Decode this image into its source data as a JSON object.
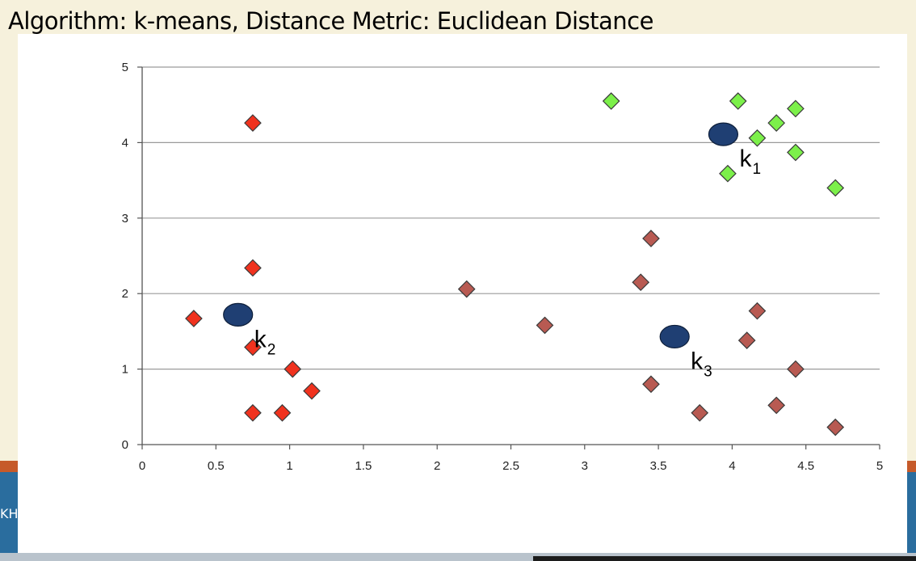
{
  "slide": {
    "title": "Algorithm: k-means, Distance Metric: Euclidean Distance",
    "footer_fragment": "KH"
  },
  "colors": {
    "background": "#f6f1dc",
    "accent_orange": "#c65a2a",
    "accent_blue": "#2a6d9e",
    "cluster_green": "#7cf04a",
    "cluster_red": "#f0321e",
    "cluster_brown": "#b85a52",
    "centroid": "#1f3f73"
  },
  "chart_data": {
    "type": "scatter",
    "title": "",
    "xlabel": "",
    "ylabel": "",
    "xlim": [
      0,
      5
    ],
    "ylim": [
      0,
      5
    ],
    "x_ticks": [
      "0",
      "0.5",
      "1",
      "1.5",
      "2",
      "2.5",
      "3",
      "3.5",
      "4",
      "4.5",
      "5"
    ],
    "y_ticks": [
      "0",
      "1",
      "2",
      "3",
      "4",
      "5"
    ],
    "grid": "horizontal",
    "series": [
      {
        "color": "#7cf04a",
        "marker": "diamond",
        "points": [
          [
            3.18,
            4.55
          ],
          [
            4.04,
            4.55
          ],
          [
            4.43,
            4.45
          ],
          [
            4.3,
            4.26
          ],
          [
            4.17,
            4.06
          ],
          [
            4.43,
            3.87
          ],
          [
            3.97,
            3.59
          ],
          [
            4.7,
            3.4
          ]
        ]
      },
      {
        "color": "#f0321e",
        "marker": "diamond",
        "points": [
          [
            0.75,
            4.26
          ],
          [
            0.75,
            2.34
          ],
          [
            0.35,
            1.67
          ],
          [
            0.75,
            1.29
          ],
          [
            1.02,
            1.0
          ],
          [
            1.15,
            0.71
          ],
          [
            0.75,
            0.42
          ],
          [
            0.95,
            0.42
          ]
        ]
      },
      {
        "color": "#b85a52",
        "marker": "diamond",
        "points": [
          [
            3.45,
            2.73
          ],
          [
            3.38,
            2.15
          ],
          [
            2.2,
            2.06
          ],
          [
            2.73,
            1.58
          ],
          [
            4.17,
            1.77
          ],
          [
            4.1,
            1.38
          ],
          [
            4.43,
            1.0
          ],
          [
            3.45,
            0.8
          ],
          [
            4.3,
            0.52
          ],
          [
            3.78,
            0.42
          ],
          [
            4.7,
            0.23
          ]
        ]
      }
    ],
    "centroids": [
      {
        "label": "k",
        "subscript": "1",
        "x": 3.94,
        "y": 4.11
      },
      {
        "label": "k",
        "subscript": "2",
        "x": 0.65,
        "y": 1.72
      },
      {
        "label": "k",
        "subscript": "3",
        "x": 3.61,
        "y": 1.43
      }
    ]
  }
}
